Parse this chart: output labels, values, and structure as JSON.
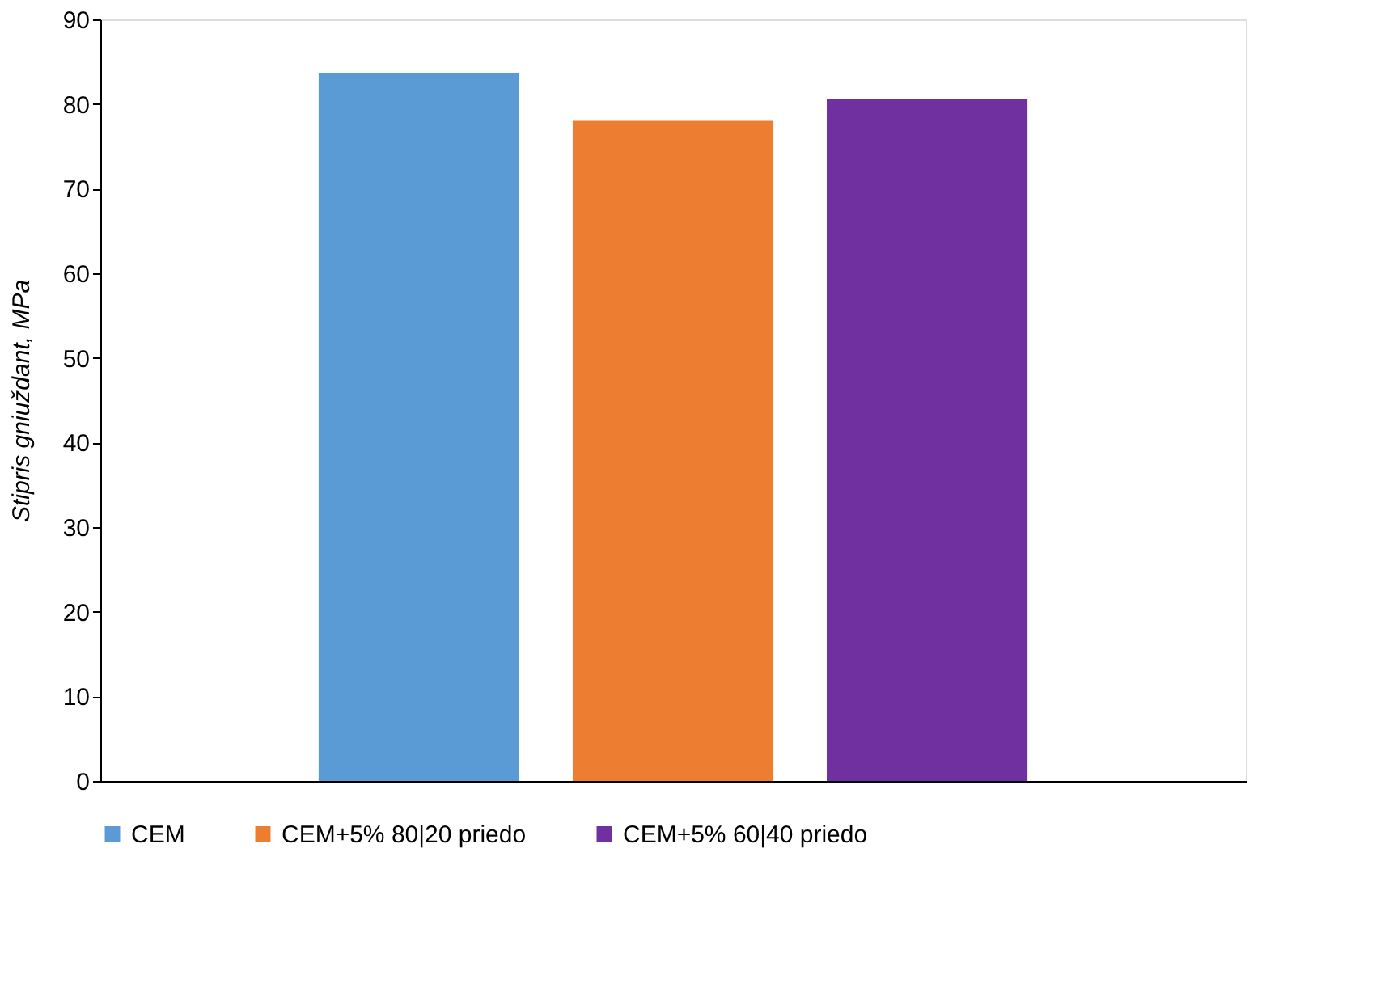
{
  "chart_data": {
    "type": "bar",
    "ylabel": "Stipris gniuždant, MPa",
    "categories": [
      null
    ],
    "series": [
      {
        "name": "CEM",
        "color": "#5b9bd5",
        "values": [
          83.7
        ]
      },
      {
        "name": "CEM+5% 80|20 priedo",
        "color": "#ed7d31",
        "values": [
          78.0
        ]
      },
      {
        "name": "CEM+5% 60|40 priedo",
        "color": "#7030a0",
        "values": [
          80.6
        ]
      }
    ],
    "ylim": [
      0,
      90
    ],
    "yticks": [
      0,
      10,
      20,
      30,
      40,
      50,
      60,
      70,
      80,
      90
    ],
    "grid": false,
    "legend": "bottom",
    "tick_labels": "y"
  }
}
